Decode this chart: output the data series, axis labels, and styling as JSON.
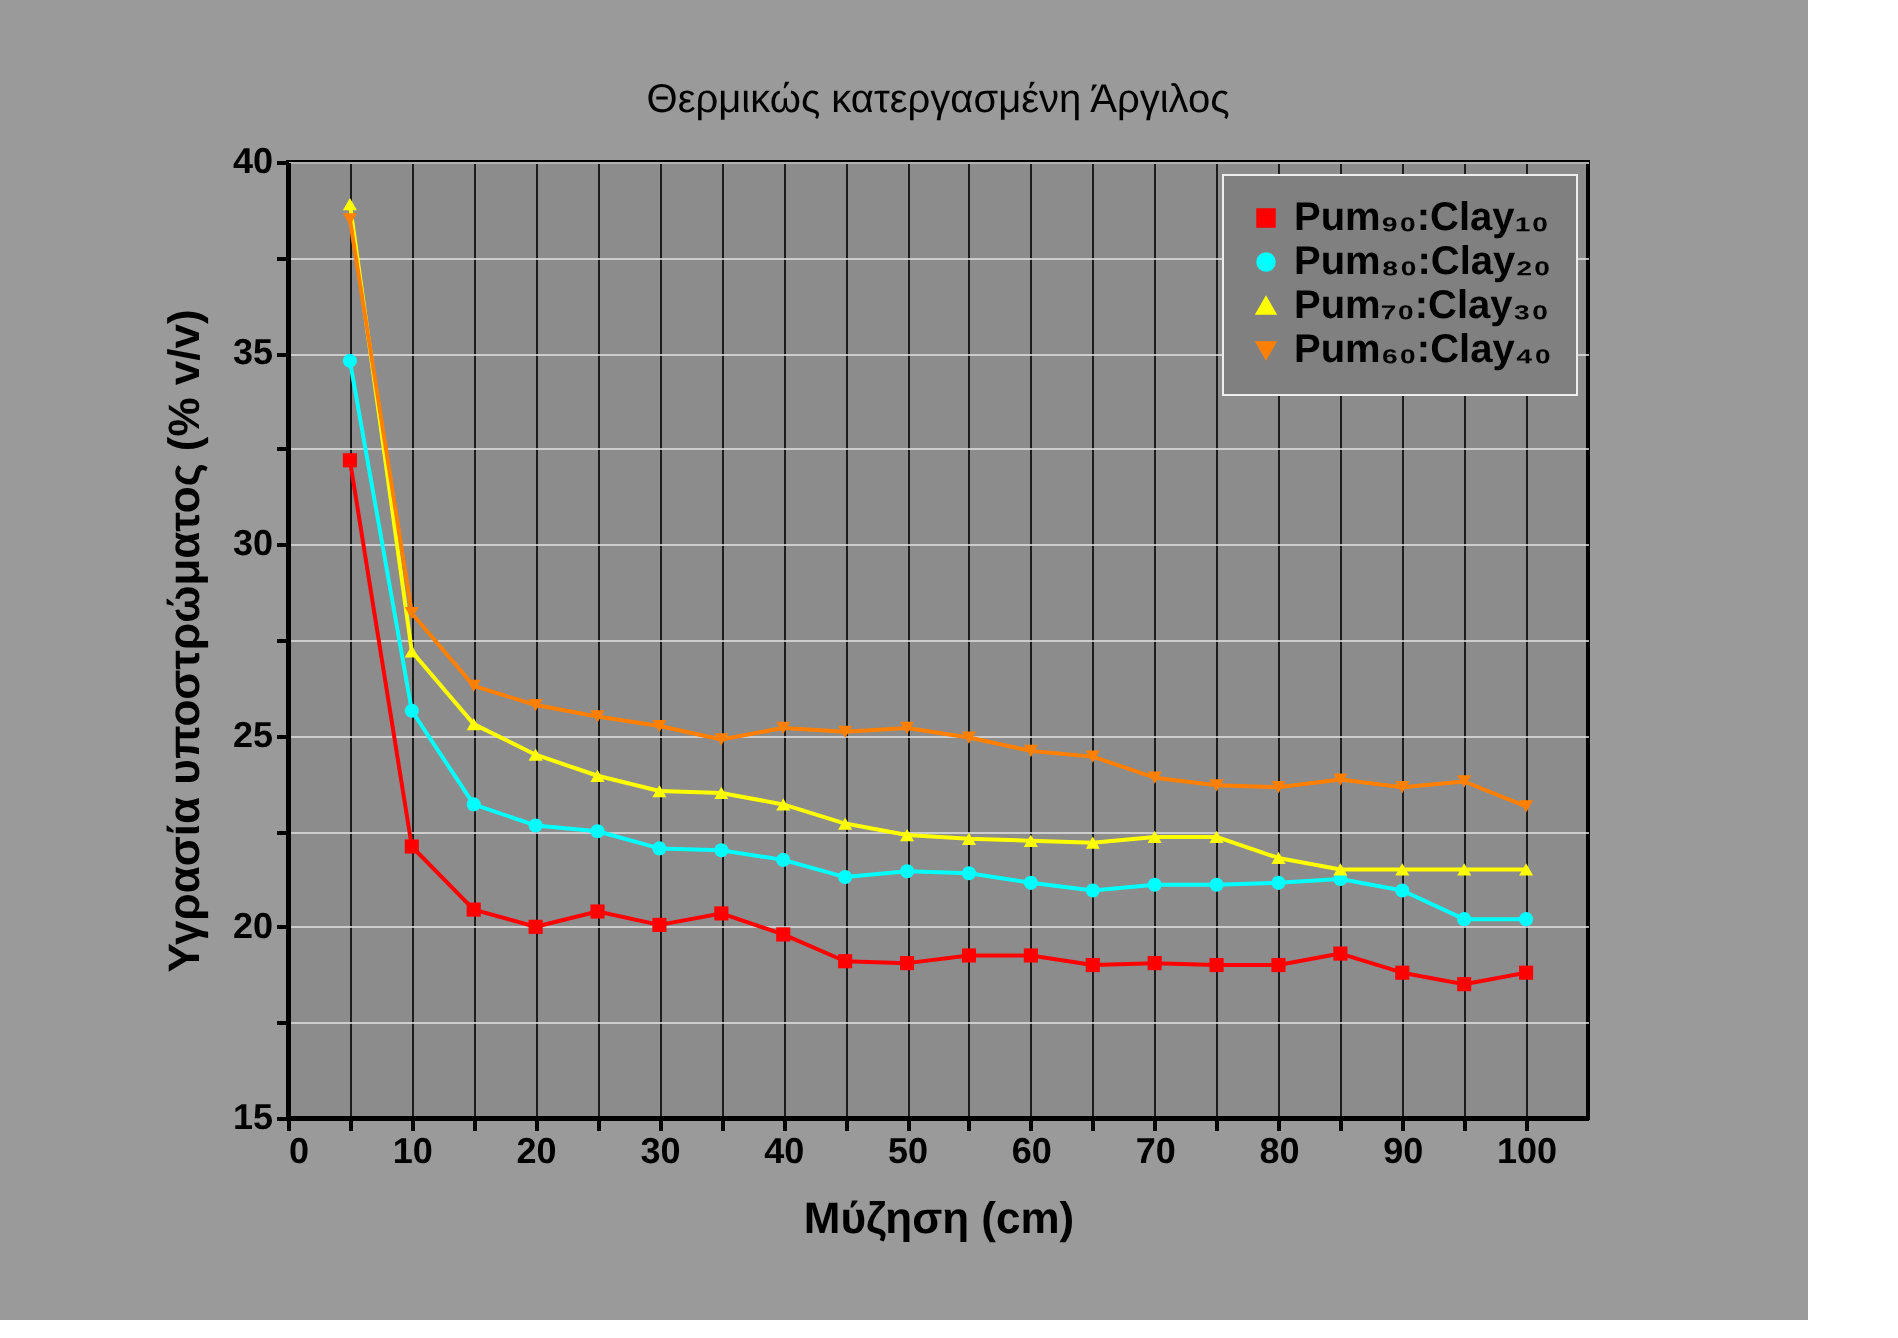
{
  "chart_data": {
    "type": "line",
    "title": "Θερμικώς κατεργασμένη Άργιλος",
    "xlabel": "Μύζηση (cm)",
    "ylabel": "Υγρασία υποστρώματος (% v/v)",
    "x": [
      5,
      10,
      15,
      20,
      25,
      30,
      35,
      40,
      45,
      50,
      55,
      60,
      65,
      70,
      75,
      80,
      85,
      90,
      95,
      100
    ],
    "series": [
      {
        "name": "Pum₉₀:Clay₁₀",
        "color": "#ff0000",
        "marker": "square",
        "values": [
          32.2,
          22.1,
          20.45,
          20.0,
          20.4,
          20.05,
          20.35,
          19.8,
          19.1,
          19.05,
          19.25,
          19.25,
          19.0,
          19.05,
          19.0,
          19.0,
          19.3,
          18.8,
          18.5,
          18.8
        ]
      },
      {
        "name": "Pum₈₀:Clay₂₀",
        "color": "#00ffff",
        "marker": "circle",
        "values": [
          34.8,
          25.65,
          23.2,
          22.65,
          22.5,
          22.05,
          22.0,
          21.75,
          21.3,
          21.45,
          21.4,
          21.15,
          20.95,
          21.1,
          21.1,
          21.15,
          21.25,
          20.95,
          20.2,
          20.2
        ]
      },
      {
        "name": "Pum₇₀:Clay₃₀",
        "color": "#ffff00",
        "marker": "triangle",
        "values": [
          38.9,
          27.2,
          25.3,
          24.5,
          23.95,
          23.55,
          23.5,
          23.2,
          22.7,
          22.4,
          22.3,
          22.25,
          22.2,
          22.35,
          22.35,
          21.8,
          21.5,
          21.5,
          21.5,
          21.5
        ]
      },
      {
        "name": "Pum₆₀:Clay₄₀",
        "color": "#ff8000",
        "marker": "triangle-down",
        "values": [
          38.5,
          28.2,
          26.3,
          25.8,
          25.5,
          25.25,
          24.9,
          25.2,
          25.1,
          25.2,
          24.95,
          24.6,
          24.45,
          23.9,
          23.7,
          23.65,
          23.85,
          23.65,
          23.8,
          23.15
        ]
      }
    ],
    "xlim": [
      0,
      105
    ],
    "xticks": [
      0,
      {
        "value": 5,
        "label": null
      },
      10,
      {
        "value": 15,
        "label": null
      },
      20,
      {
        "value": 25,
        "label": null
      },
      30,
      {
        "value": 35,
        "label": null
      },
      40,
      {
        "value": 45,
        "label": null
      },
      50,
      {
        "value": 55,
        "label": null
      },
      60,
      {
        "value": 65,
        "label": null
      },
      70,
      {
        "value": 75,
        "label": null
      },
      80,
      {
        "value": 85,
        "label": null
      },
      90,
      {
        "value": 95,
        "label": null
      },
      100
    ],
    "ylim": [
      15,
      40
    ],
    "yticks": [
      15,
      {
        "value": 17.5,
        "label": null
      },
      20,
      {
        "value": 22.5,
        "label": null
      },
      25,
      {
        "value": 27.5,
        "label": null
      },
      30,
      {
        "value": 32.5,
        "label": null
      },
      35,
      {
        "value": 37.5,
        "label": null
      },
      40
    ],
    "grid": true,
    "legend": "top right",
    "line_style": "solid"
  }
}
